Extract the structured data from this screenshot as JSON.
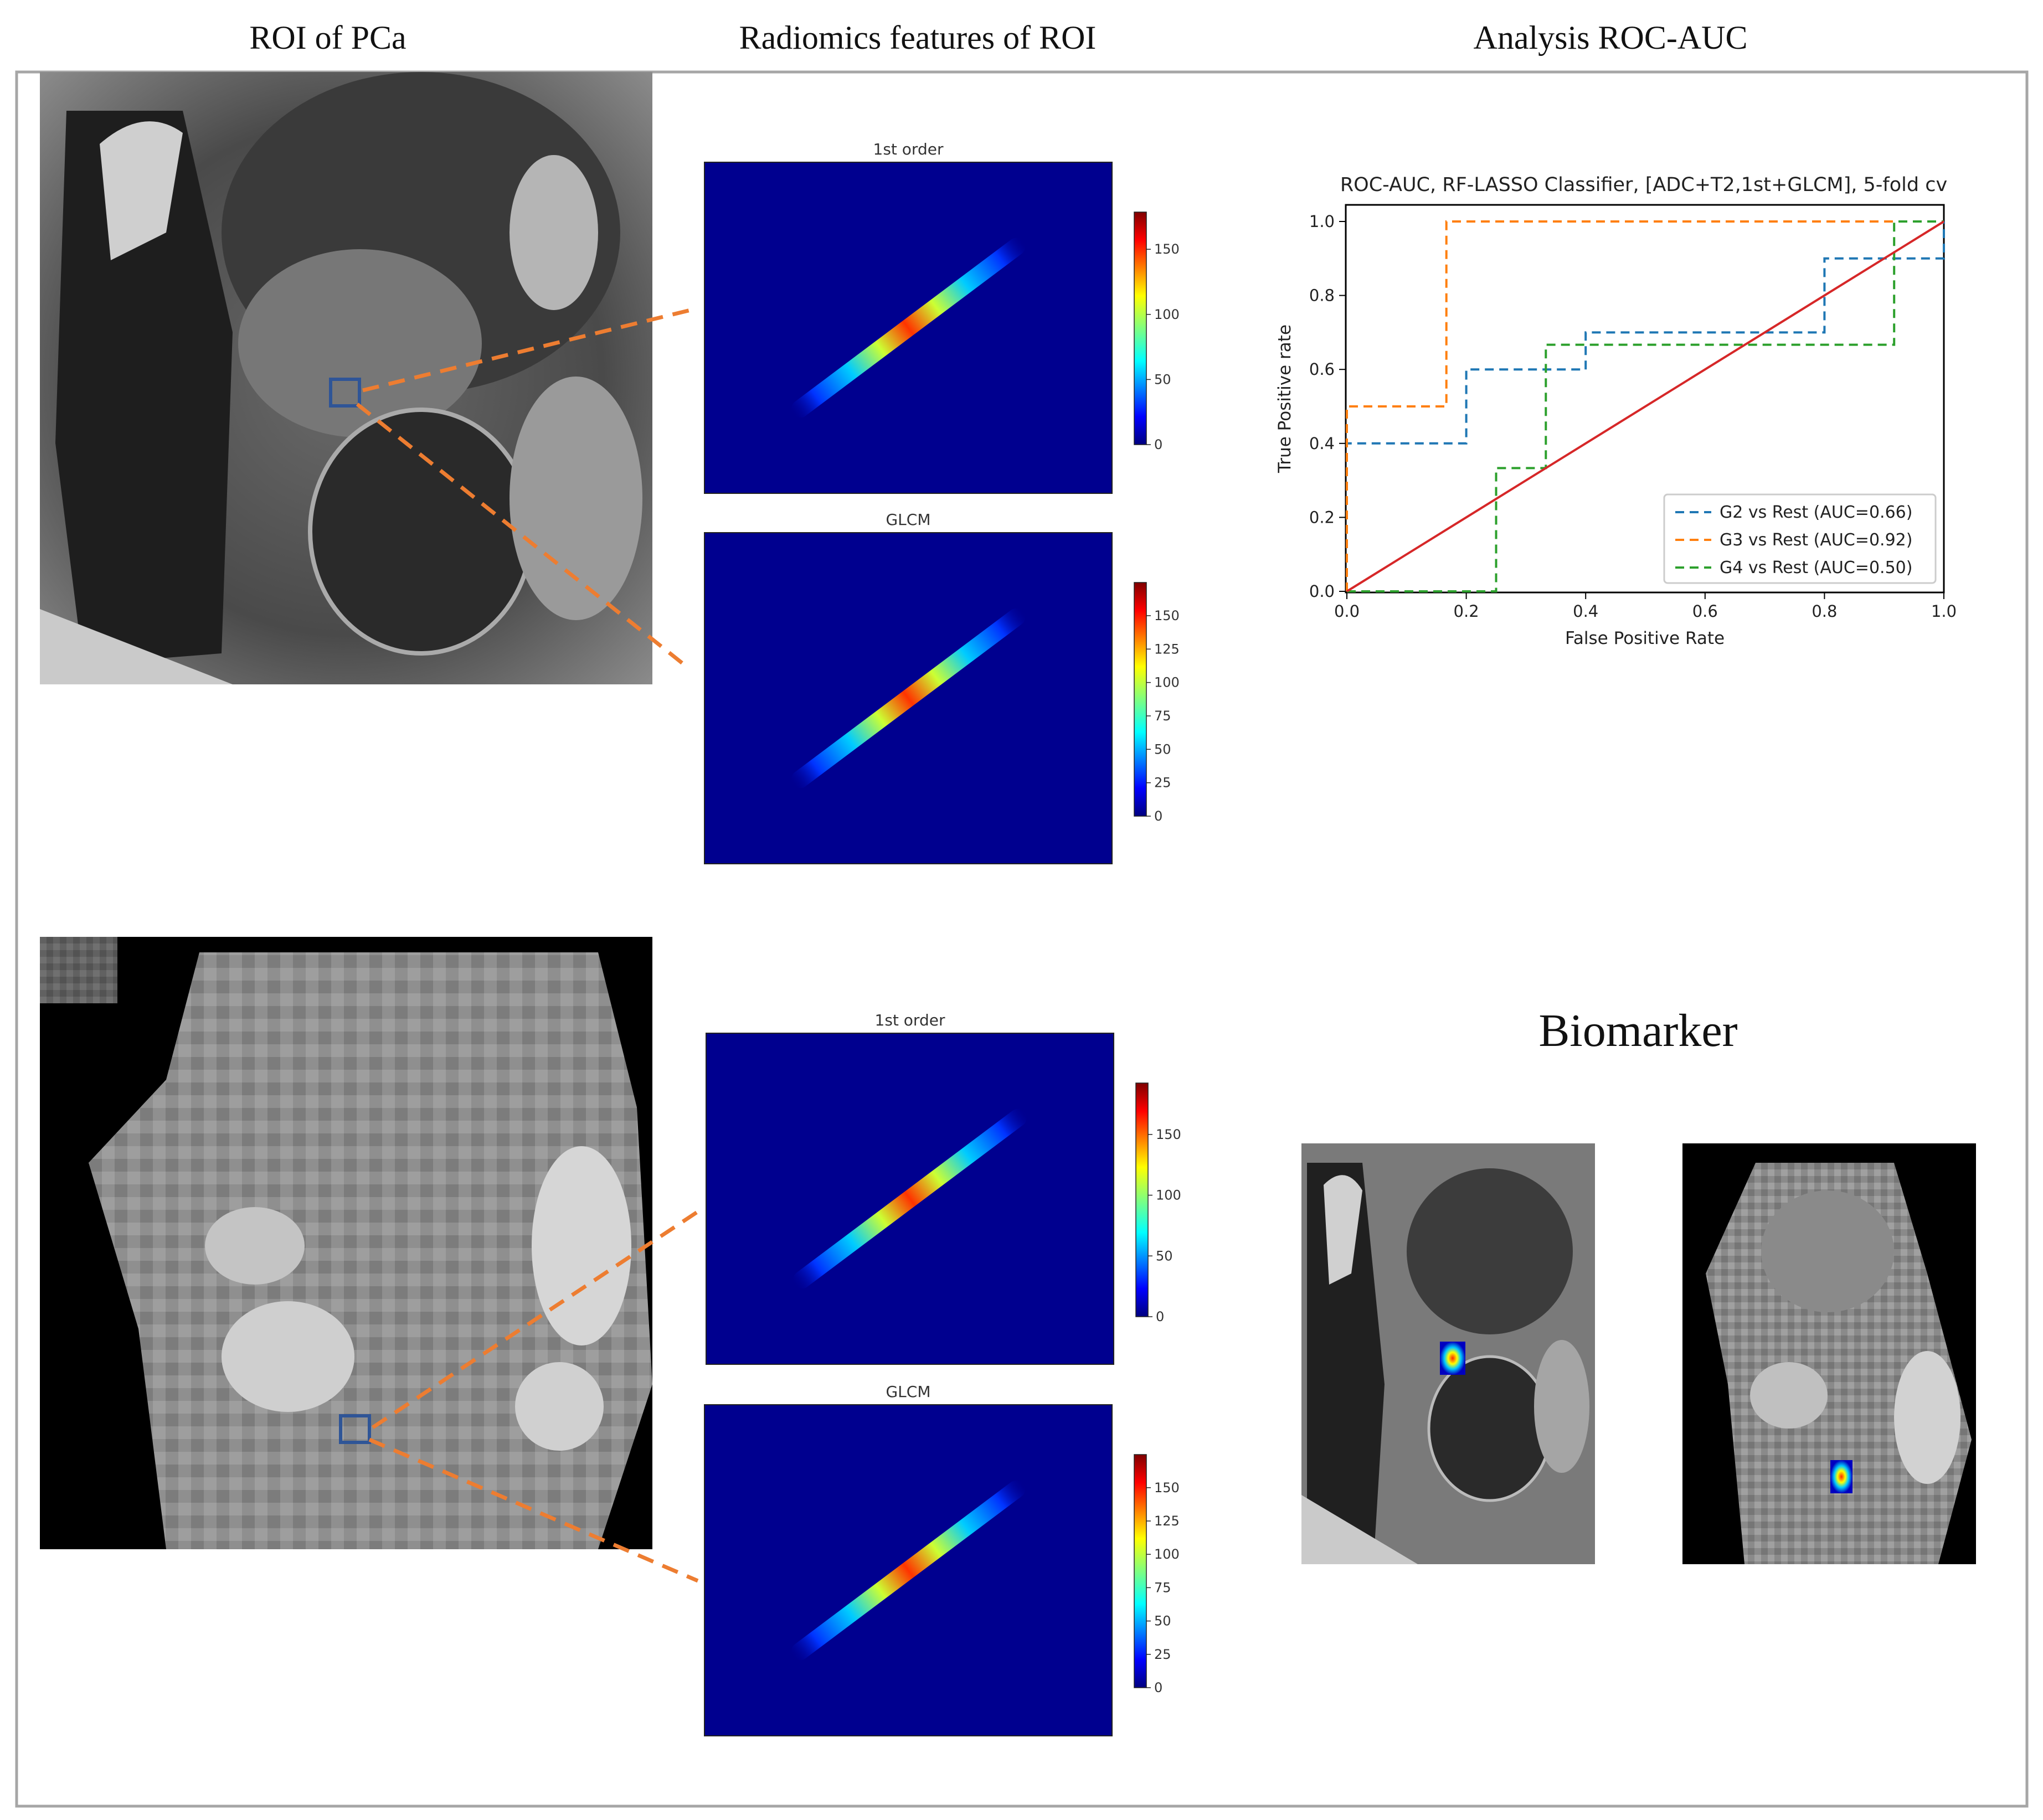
{
  "headers": {
    "col1": "ROI of PCa",
    "col2": "Radiomics features of ROI",
    "col3": "Analysis ROC-AUC"
  },
  "biomarker": {
    "title": "Biomarker"
  },
  "heatmaps": [
    {
      "title": "1st order",
      "ticks": [
        "0",
        "50",
        "100",
        "150"
      ]
    },
    {
      "title": "GLCM",
      "ticks": [
        "0",
        "25",
        "50",
        "75",
        "100",
        "125",
        "150"
      ]
    },
    {
      "title": "1st order",
      "ticks": [
        "0",
        "50",
        "100",
        "150"
      ]
    },
    {
      "title": "GLCM",
      "ticks": [
        "0",
        "25",
        "50",
        "75",
        "100",
        "125",
        "150"
      ]
    }
  ],
  "colors": {
    "dash_orange": "#ED7D31",
    "roi_box": "#2F5597",
    "heatmap_bg": "#00008F",
    "frame": "#A6A6A6"
  },
  "chart_data": {
    "type": "line",
    "title": "ROC-AUC, RF-LASSO Classifier, [ADC+T2,1st+GLCM], 5-fold cv",
    "xlabel": "False Positive Rate",
    "ylabel": "True Positive rate",
    "xlim": [
      0,
      1
    ],
    "ylim": [
      0,
      1
    ],
    "xticks": [
      "0.0",
      "0.2",
      "0.4",
      "0.6",
      "0.8",
      "1.0"
    ],
    "yticks": [
      "0.0",
      "0.2",
      "0.4",
      "0.6",
      "0.8",
      "1.0"
    ],
    "legend_position": "lower-right",
    "series": [
      {
        "name": "G2 vs Rest (AUC=0.66)",
        "color": "#1F77B4",
        "style": "dashed",
        "x": [
          0,
          0,
          0.2,
          0.2,
          0.4,
          0.4,
          0.8,
          0.8,
          1.0,
          1.0
        ],
        "y": [
          0,
          0.4,
          0.4,
          0.6,
          0.6,
          0.7,
          0.7,
          0.9,
          0.9,
          1.0
        ]
      },
      {
        "name": "G3 vs Rest (AUC=0.92)",
        "color": "#FF7F0E",
        "style": "dashed",
        "x": [
          0,
          0,
          0.1667,
          0.1667,
          1.0
        ],
        "y": [
          0,
          0.5,
          0.5,
          1.0,
          1.0
        ]
      },
      {
        "name": "G4 vs Rest (AUC=0.50)",
        "color": "#2CA02C",
        "style": "dashed",
        "x": [
          0,
          0.25,
          0.25,
          0.3333,
          0.3333,
          0.9167,
          0.9167,
          1.0
        ],
        "y": [
          0,
          0,
          0.3333,
          0.3333,
          0.6667,
          0.6667,
          1.0,
          1.0
        ]
      },
      {
        "name": "",
        "color": "#D62728",
        "style": "solid",
        "x": [
          0,
          1
        ],
        "y": [
          0,
          1
        ]
      }
    ]
  }
}
